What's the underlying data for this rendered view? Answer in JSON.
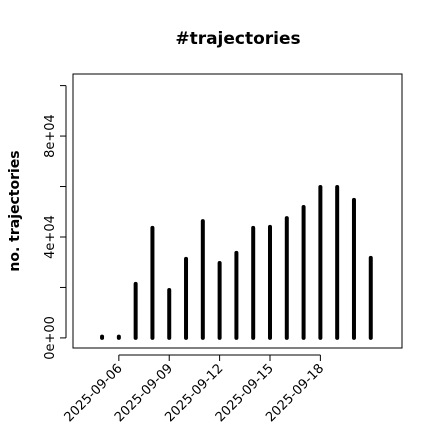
{
  "chart_data": {
    "type": "bar",
    "title": "#trajectories",
    "y_label": "no. trajectories",
    "x": [
      "2025-09-05",
      "2025-09-06",
      "2025-09-07",
      "2025-09-08",
      "2025-09-09",
      "2025-09-10",
      "2025-09-11",
      "2025-09-12",
      "2025-09-13",
      "2025-09-14",
      "2025-09-15",
      "2025-09-16",
      "2025-09-17",
      "2025-09-18",
      "2025-09-19",
      "2025-09-20",
      "2025-09-21"
    ],
    "values": [
      500,
      500,
      21400,
      43600,
      19000,
      31300,
      46300,
      29700,
      33700,
      43600,
      44000,
      47500,
      51900,
      59800,
      59800,
      54700,
      31700
    ],
    "color": "#000000",
    "ylim": [
      -4000,
      104600
    ],
    "yticks": [
      {
        "value": 0,
        "label": "0e+00"
      },
      {
        "value": 40000,
        "label": "4e+04"
      },
      {
        "value": 80000,
        "label": "8e+04"
      }
    ],
    "yminorticks": [
      20000,
      60000,
      100000
    ],
    "xticks": [
      "2025-09-06",
      "2025-09-09",
      "2025-09-12",
      "2025-09-15",
      "2025-09-18"
    ]
  }
}
